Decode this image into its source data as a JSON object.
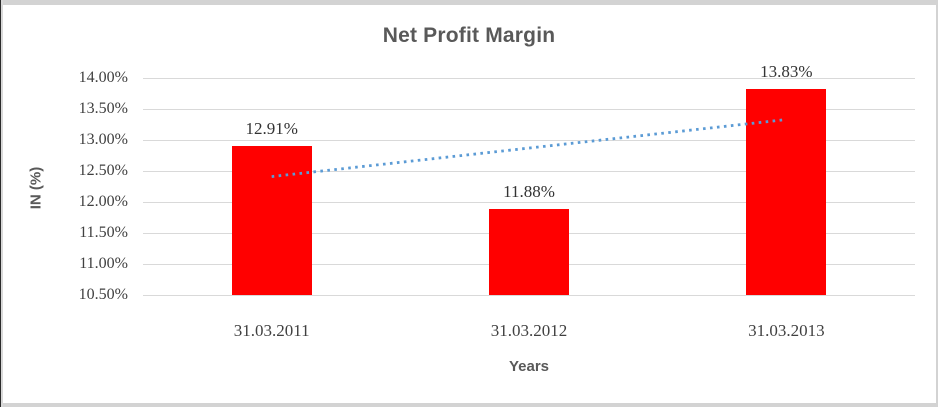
{
  "chart_data": {
    "type": "bar",
    "title": "Net Profit Margin",
    "xlabel": "Years",
    "ylabel": "IN (%)",
    "categories": [
      "31.03.2011",
      "31.03.2012",
      "31.03.2013"
    ],
    "values": [
      12.91,
      11.88,
      13.83
    ],
    "data_labels": [
      "12.91%",
      "11.88%",
      "13.83%"
    ],
    "y_ticks": [
      "14.00%",
      "13.50%",
      "13.00%",
      "12.50%",
      "12.00%",
      "11.50%",
      "11.00%",
      "10.50%"
    ],
    "ylim": [
      10.5,
      14.0
    ],
    "y_step": 0.5,
    "grid": true,
    "legend": "none",
    "bar_color": "#FF0000",
    "trendline": {
      "type": "linear",
      "style": "dotted",
      "color": "#5B9BD5",
      "start_value": 12.41,
      "end_value": 13.33
    },
    "colors": {
      "gridline": "#D9D9D9",
      "tick_text": "#404040",
      "category_text": "#404040",
      "title_text": "#595959",
      "axis_title_text": "#595959",
      "data_label_text": "#333333",
      "frame_light": "#D3D3D3",
      "frame_dark": "#2B2B2B"
    }
  }
}
